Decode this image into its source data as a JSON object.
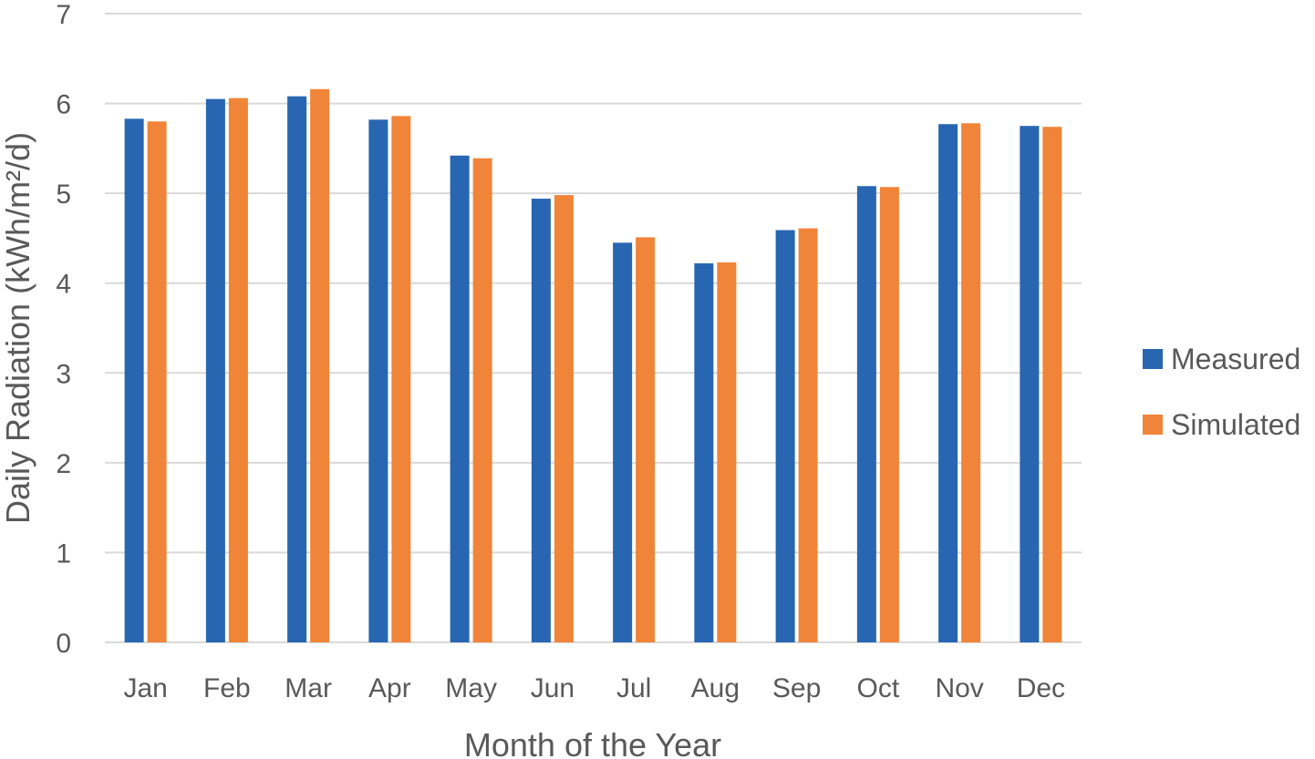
{
  "chart_data": {
    "type": "bar",
    "title": "",
    "xlabel": "Month of the Year",
    "ylabel": "Daily Radiation (kWh/m²/d)",
    "categories": [
      "Jan",
      "Feb",
      "Mar",
      "Apr",
      "May",
      "Jun",
      "Jul",
      "Aug",
      "Sep",
      "Oct",
      "Nov",
      "Dec"
    ],
    "series": [
      {
        "name": "Measured",
        "color": "#2866B2",
        "values": [
          5.83,
          6.05,
          6.08,
          5.82,
          5.42,
          4.94,
          4.45,
          4.22,
          4.59,
          5.08,
          5.77,
          5.75
        ]
      },
      {
        "name": "Simulated",
        "color": "#F08439",
        "values": [
          5.8,
          6.06,
          6.16,
          5.86,
          5.39,
          4.98,
          4.51,
          4.23,
          4.61,
          5.07,
          5.78,
          5.74
        ]
      }
    ],
    "ylim": [
      0,
      7
    ],
    "yticks": [
      "0",
      "1",
      "2",
      "3",
      "4",
      "5",
      "6",
      "7"
    ],
    "grid": true,
    "legend_position": "right"
  }
}
